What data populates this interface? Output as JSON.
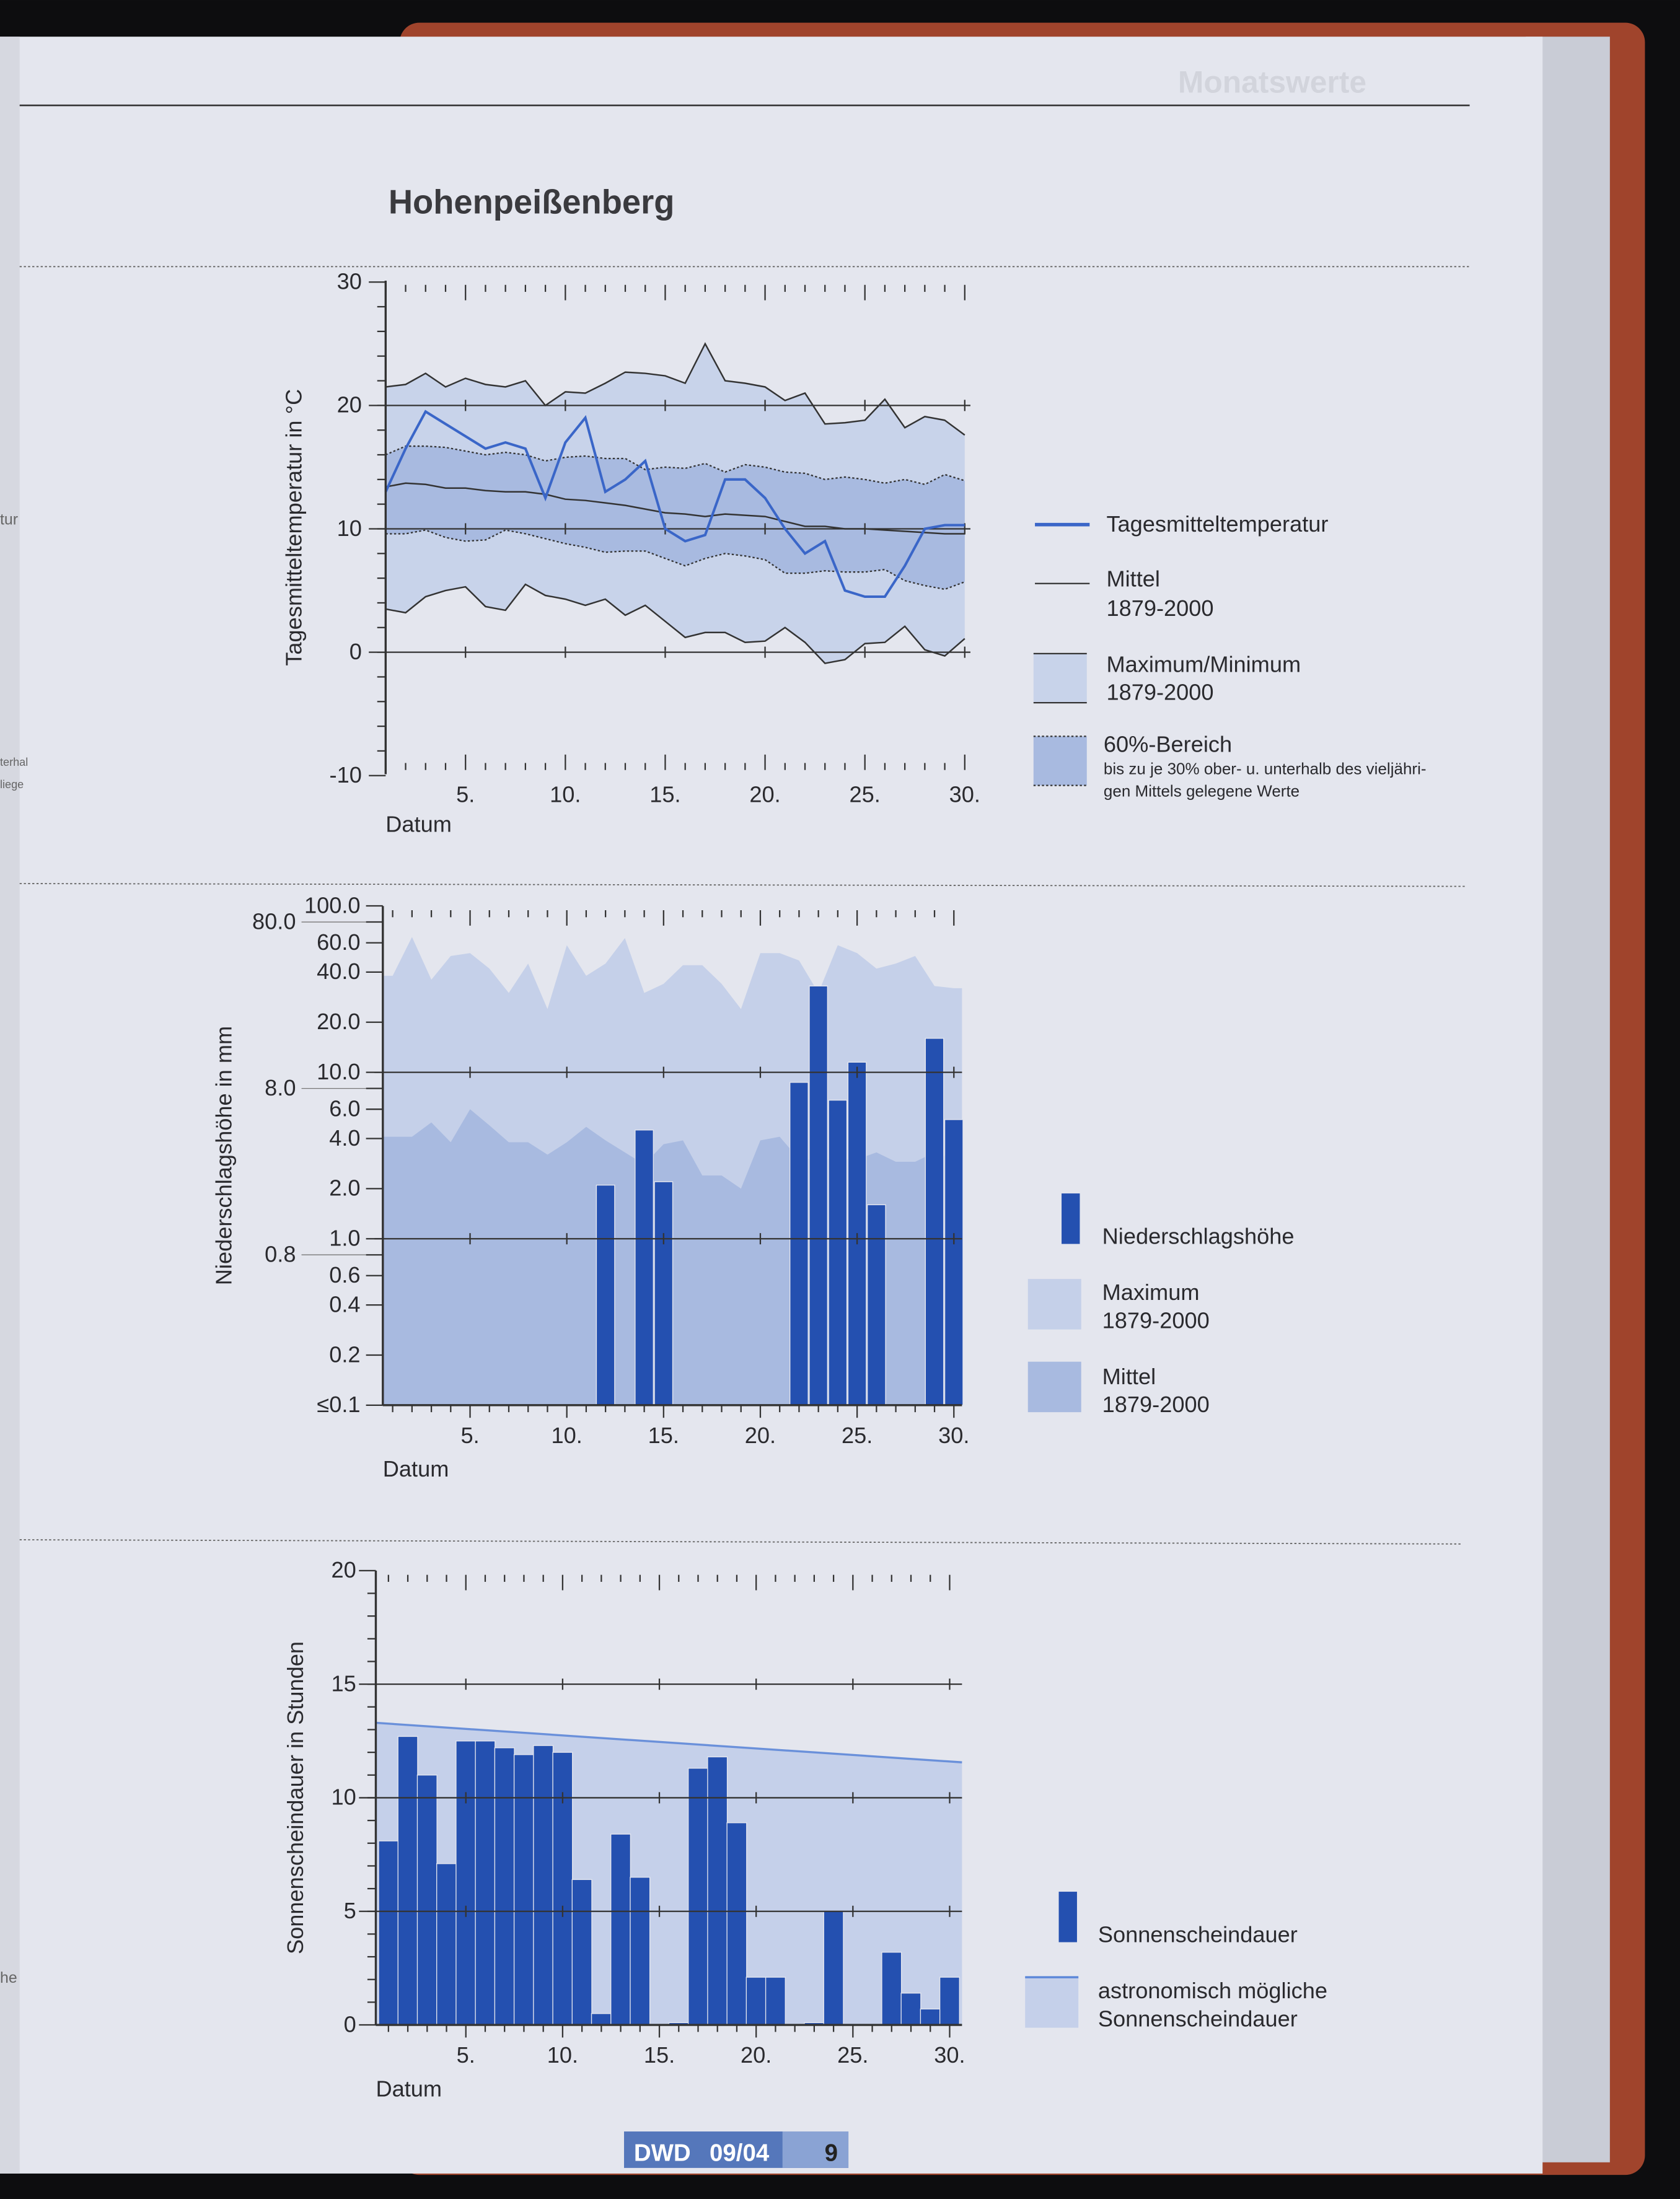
{
  "page": {
    "title": "Hohenpeißenberg",
    "header_faded": "Monatswerte",
    "footer": {
      "brand": "DWD",
      "issue": "09/04",
      "page_number": "9"
    },
    "margin_fragments": [
      "tur",
      "terhal",
      "liege",
      "he"
    ]
  },
  "colors": {
    "page": "#e4e6ee",
    "band_light": "#c8d3ea",
    "band_60": "#a8bae0",
    "line_blue": "#3a66c8",
    "bar_blue": "#2450b0",
    "binding": "#a0442c"
  },
  "chart_data": [
    {
      "type": "line",
      "title": "Tagesmitteltemperatur",
      "xlabel": "Datum",
      "ylabel": "Tagesmitteltemperatur in °C",
      "ylim": [
        -10,
        30
      ],
      "yticks": [
        "30",
        "20",
        "10",
        "0",
        "-10"
      ],
      "xticks": [
        "5.",
        "10.",
        "15.",
        "20.",
        "25.",
        "30."
      ],
      "x": [
        1,
        2,
        3,
        4,
        5,
        6,
        7,
        8,
        9,
        10,
        11,
        12,
        13,
        14,
        15,
        16,
        17,
        18,
        19,
        20,
        21,
        22,
        23,
        24,
        25,
        26,
        27,
        28,
        29,
        30
      ],
      "series": [
        {
          "name": "Tagesmitteltemperatur",
          "values": [
            13,
            16.5,
            19.5,
            18.5,
            17.5,
            16.5,
            17,
            16.5,
            12.5,
            17,
            19,
            13,
            14,
            15.5,
            10,
            9,
            9.5,
            14,
            14,
            12.5,
            10,
            8,
            9,
            5,
            4.5,
            4.5,
            7,
            10,
            10.3,
            10.3
          ]
        },
        {
          "name": "Mittel 1879-2000",
          "values": [
            13.4,
            13.7,
            13.6,
            13.3,
            13.3,
            13.1,
            13,
            13,
            12.8,
            12.4,
            12.3,
            12.1,
            11.9,
            11.6,
            11.3,
            11.2,
            11,
            11.2,
            11.1,
            11,
            10.6,
            10.2,
            10.2,
            10,
            10,
            9.9,
            9.8,
            9.7,
            9.6,
            9.6
          ]
        },
        {
          "name": "Maximum 1879-2000",
          "values": [
            21.5,
            21.7,
            22.6,
            21.5,
            22.2,
            21.7,
            21.5,
            22,
            20,
            21.1,
            21,
            21.8,
            22.7,
            22.6,
            22.4,
            21.8,
            25,
            22,
            21.8,
            21.5,
            20.4,
            21,
            18.5,
            18.6,
            18.8,
            20.5,
            18.2,
            19.1,
            18.8,
            17.6
          ]
        },
        {
          "name": "Minimum 1879-2000",
          "values": [
            3.5,
            3.2,
            4.5,
            5,
            5.3,
            3.7,
            3.4,
            5.5,
            4.6,
            4.3,
            3.8,
            4.3,
            3,
            3.8,
            2.5,
            1.2,
            1.6,
            1.6,
            0.8,
            0.9,
            2,
            0.8,
            -0.9,
            -0.6,
            0.7,
            0.8,
            2.1,
            0.2,
            -0.3,
            1.1
          ]
        },
        {
          "name": "60%-Bereich oben",
          "values": [
            16,
            16.7,
            16.7,
            16.6,
            16.3,
            16,
            16.2,
            16,
            15.5,
            15.8,
            15.9,
            15.7,
            15.7,
            14.8,
            15,
            14.9,
            15.3,
            14.6,
            15.2,
            15,
            14.6,
            14.5,
            14,
            14.2,
            14,
            13.7,
            14,
            13.6,
            14.4,
            13.9
          ]
        },
        {
          "name": "60%-Bereich unten",
          "values": [
            9.6,
            9.6,
            9.9,
            9.3,
            9,
            9.1,
            9.9,
            9.6,
            9.2,
            8.8,
            8.5,
            8.1,
            8.2,
            8.2,
            7.6,
            7,
            7.6,
            8,
            7.8,
            7.5,
            6.4,
            6.4,
            6.6,
            6.5,
            6.5,
            6.7,
            5.8,
            5.4,
            5.1,
            5.7
          ]
        }
      ],
      "legend": {
        "position": "right",
        "entries": [
          {
            "label": "Tagesmitteltemperatur"
          },
          {
            "label": "Mittel",
            "sub": "1879-2000"
          },
          {
            "label": "Maximum/Minimum",
            "sub": "1879-2000"
          },
          {
            "label": "60%-Bereich",
            "note1": "bis zu je 30% ober- u. unterhalb des vieljähri-",
            "note2": "gen Mittels gelegene Werte"
          }
        ]
      }
    },
    {
      "type": "bar",
      "title": "Niederschlagshöhe",
      "xlabel": "Datum",
      "ylabel": "Niederschlagshöhe in mm",
      "yscale": "log",
      "ylim": [
        0.1,
        100
      ],
      "yticks": [
        "100.0",
        "80.0",
        "60.0",
        "40.0",
        "20.0",
        "10.0",
        "8.0",
        "6.0",
        "4.0",
        "2.0",
        "1.0",
        "0.8",
        "0.6",
        "0.4",
        "0.2",
        "≤0.1"
      ],
      "ytick_values": [
        100,
        80,
        60,
        40,
        20,
        10,
        8,
        6,
        4,
        2,
        1,
        0.8,
        0.6,
        0.4,
        0.2,
        0.1
      ],
      "xticks": [
        "5.",
        "10.",
        "15.",
        "20.",
        "25.",
        "30."
      ],
      "x": [
        1,
        2,
        3,
        4,
        5,
        6,
        7,
        8,
        9,
        10,
        11,
        12,
        13,
        14,
        15,
        16,
        17,
        18,
        19,
        20,
        21,
        22,
        23,
        24,
        25,
        26,
        27,
        28,
        29,
        30
      ],
      "series": [
        {
          "name": "Niederschlagshöhe",
          "values": [
            0,
            0,
            0,
            0,
            0,
            0,
            0,
            0,
            0,
            0,
            0,
            2.1,
            0,
            4.5,
            2.2,
            0,
            0,
            0,
            0,
            0,
            0,
            8.7,
            33,
            6.8,
            11.5,
            1.6,
            0,
            0,
            16,
            5.2
          ]
        },
        {
          "name": "Maximum 1879-2000",
          "values": [
            38,
            65,
            36,
            50,
            52,
            42,
            30,
            45,
            24,
            58,
            38,
            45,
            64,
            30,
            34,
            44,
            44,
            34,
            24,
            52,
            52,
            47,
            30,
            58,
            52,
            42,
            45,
            50,
            33,
            32
          ]
        },
        {
          "name": "Mittel 1879-2000",
          "values": [
            4.1,
            4.1,
            5,
            3.8,
            6,
            4.8,
            3.8,
            3.8,
            3.2,
            3.8,
            4.7,
            3.9,
            3.3,
            2.8,
            3.7,
            3.9,
            2.4,
            2.4,
            2,
            3.9,
            4.1,
            3,
            3,
            3,
            3,
            3.3,
            2.9,
            2.9,
            3.3,
            3
          ]
        }
      ],
      "legend": {
        "position": "right",
        "entries": [
          {
            "label": "Niederschlagshöhe"
          },
          {
            "label": "Maximum",
            "sub": "1879-2000"
          },
          {
            "label": "Mittel",
            "sub": "1879-2000"
          }
        ]
      }
    },
    {
      "type": "bar",
      "title": "Sonnenscheindauer",
      "xlabel": "Datum",
      "ylabel": "Sonnenscheindauer in Stunden",
      "ylim": [
        0,
        20
      ],
      "yticks": [
        "20",
        "15",
        "10",
        "5",
        "0"
      ],
      "xticks": [
        "5.",
        "10.",
        "15.",
        "20.",
        "25.",
        "30."
      ],
      "x": [
        1,
        2,
        3,
        4,
        5,
        6,
        7,
        8,
        9,
        10,
        11,
        12,
        13,
        14,
        15,
        16,
        17,
        18,
        19,
        20,
        21,
        22,
        23,
        24,
        25,
        26,
        27,
        28,
        29,
        30
      ],
      "series": [
        {
          "name": "Sonnenscheindauer",
          "values": [
            8.1,
            12.7,
            11.0,
            7.1,
            12.5,
            12.5,
            12.2,
            11.9,
            12.3,
            12.0,
            6.4,
            0.5,
            8.4,
            6.5,
            0,
            0.1,
            11.3,
            11.8,
            8.9,
            2.1,
            2.1,
            0,
            0.1,
            5.0,
            0,
            0,
            3.2,
            1.4,
            0.7,
            2.1
          ]
        },
        {
          "name": "astronomisch mögliche Sonnenscheindauer",
          "values": [
            13.3,
            13.24,
            13.18,
            13.12,
            13.06,
            13.0,
            12.94,
            12.88,
            12.82,
            12.76,
            12.7,
            12.64,
            12.58,
            12.52,
            12.46,
            12.4,
            12.34,
            12.28,
            12.22,
            12.16,
            12.1,
            12.04,
            11.98,
            11.92,
            11.86,
            11.8,
            11.74,
            11.68,
            11.62,
            11.56
          ]
        }
      ],
      "legend": {
        "position": "right",
        "entries": [
          {
            "label": "Sonnenscheindauer"
          },
          {
            "label": "astronomisch mögliche",
            "sub": "Sonnenscheindauer"
          }
        ]
      }
    }
  ]
}
